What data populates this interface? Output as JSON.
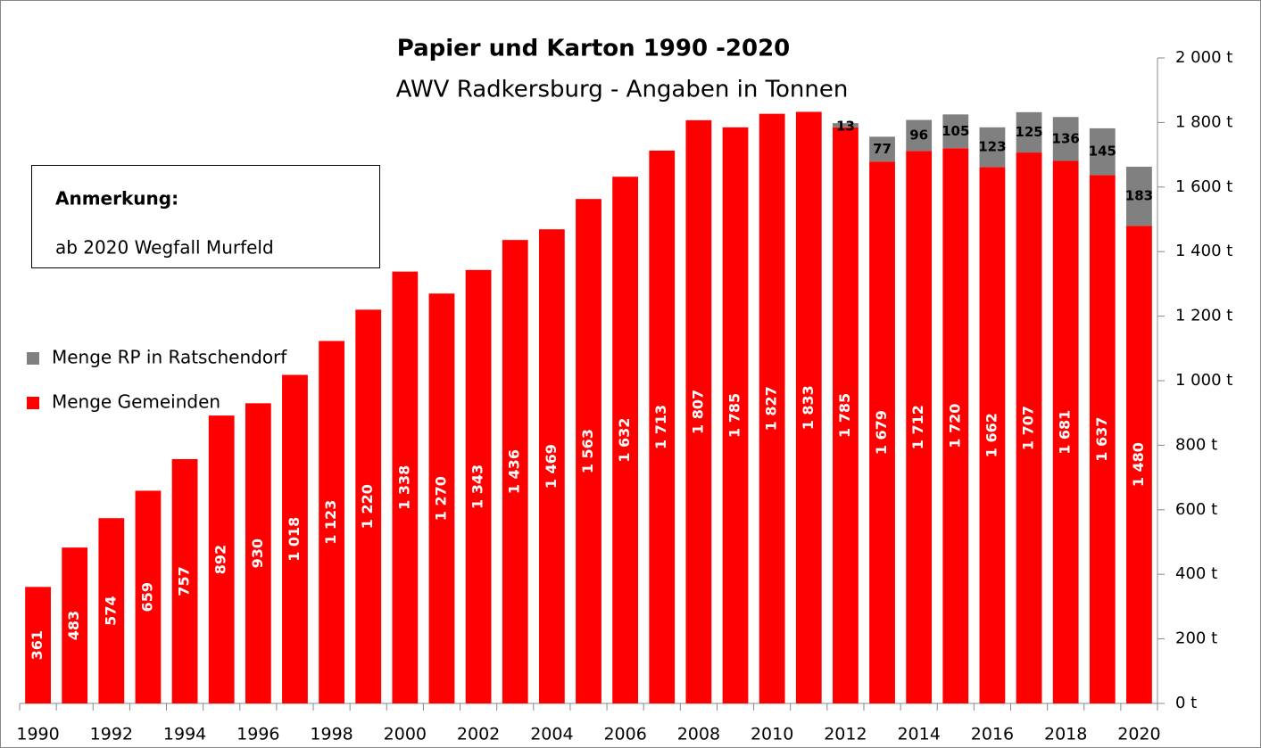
{
  "chart_data": {
    "type": "stacked_bar",
    "title": "Papier und Karton 1990 -2020",
    "subtitle": "AWV Radkersburg - Angaben in Tonnen",
    "annotations": [
      "Anmerkung:",
      "ab 2020 Wegfall Murfeld"
    ],
    "categories": [
      "1990",
      null,
      "1992",
      null,
      "1994",
      null,
      "1996",
      null,
      "1998",
      null,
      "2000",
      null,
      "2002",
      null,
      "2004",
      null,
      "2006",
      null,
      "2008",
      null,
      "2010",
      null,
      "2012",
      null,
      "2014",
      null,
      "2016",
      null,
      "2018",
      null,
      "2020"
    ],
    "series": [
      {
        "name": "Menge Gemeinden",
        "color": "#ff0000",
        "values": [
          361,
          483,
          574,
          659,
          757,
          892,
          930,
          1018,
          1123,
          1220,
          1338,
          1270,
          1343,
          1436,
          1469,
          1563,
          1632,
          1713,
          1807,
          1785,
          1827,
          1833,
          1785,
          1679,
          1712,
          1720,
          1662,
          1707,
          1681,
          1637,
          1480
        ],
        "value_labels": [
          "361",
          "483",
          "574",
          "659",
          "757",
          "892",
          "930",
          "1 018",
          "1 123",
          "1 220",
          "1 338",
          "1 270",
          "1 343",
          "1 436",
          "1 469",
          "1 563",
          "1 632",
          "1 713",
          "1 807",
          "1 785",
          "1 827",
          "1 833",
          "1 785",
          "1 679",
          "1 712",
          "1 720",
          "1 662",
          "1 707",
          "1 681",
          "1 637",
          "1 480"
        ]
      },
      {
        "name": "Menge RP in Ratschendorf",
        "color": "#808080",
        "values": [
          null,
          null,
          null,
          null,
          null,
          null,
          null,
          null,
          null,
          null,
          null,
          null,
          null,
          null,
          null,
          null,
          null,
          null,
          null,
          null,
          null,
          null,
          13,
          77,
          96,
          105,
          123,
          125,
          136,
          145,
          183
        ]
      }
    ],
    "ylim": [
      0,
      2000
    ],
    "yticks": [
      {
        "value": 0,
        "label": "0 t"
      },
      {
        "value": 200,
        "label": "200 t"
      },
      {
        "value": 400,
        "label": "400 t"
      },
      {
        "value": 600,
        "label": "600 t"
      },
      {
        "value": 800,
        "label": "800 t"
      },
      {
        "value": 1000,
        "label": "1 000 t"
      },
      {
        "value": 1200,
        "label": "1 200 t"
      },
      {
        "value": 1400,
        "label": "1 400 t"
      },
      {
        "value": 1600,
        "label": "1 600 t"
      },
      {
        "value": 1800,
        "label": "1 800 t"
      },
      {
        "value": 2000,
        "label": "2 000 t"
      }
    ],
    "legend": "left",
    "grid": false
  }
}
